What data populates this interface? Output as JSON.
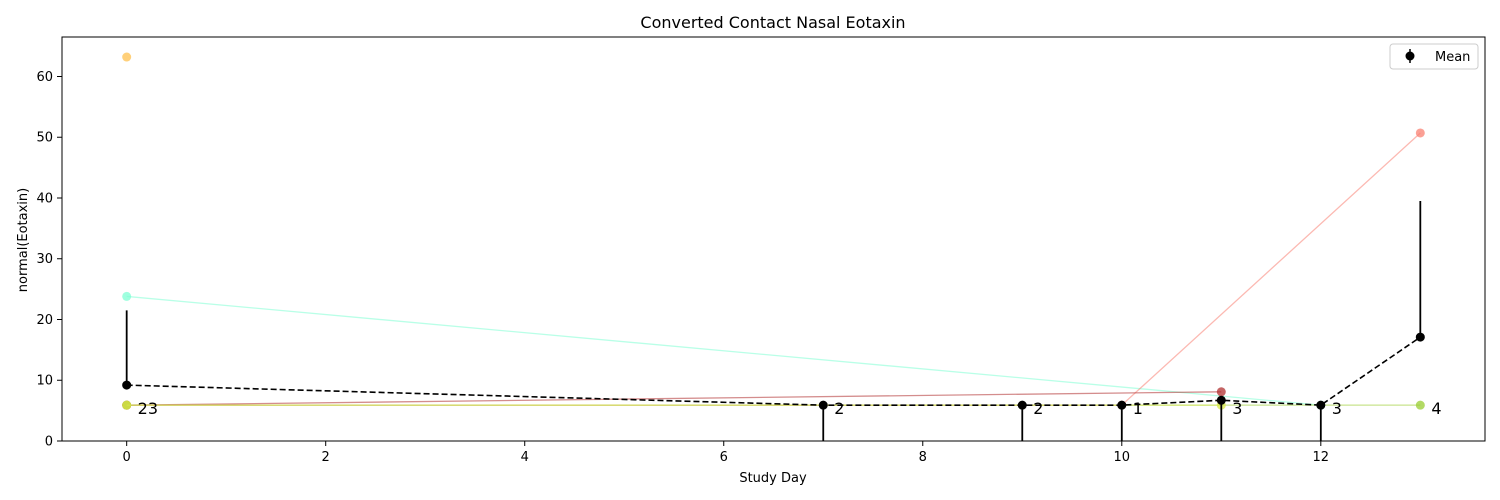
{
  "chart_data": {
    "type": "line",
    "title": "Converted Contact Nasal Eotaxin",
    "xlabel": "Study Day",
    "ylabel": "normal(Eotaxin)",
    "xlim": [
      -0.65,
      13.65
    ],
    "ylim": [
      0,
      66.5
    ],
    "xticks": [
      0,
      2,
      4,
      6,
      8,
      10,
      12
    ],
    "yticks": [
      0,
      10,
      20,
      30,
      40,
      50,
      60
    ],
    "grid": false,
    "legend": {
      "position": "top-right",
      "entries": [
        "Mean"
      ]
    },
    "individual_series": [
      {
        "color": "#ffc04d",
        "points": [
          [
            0,
            63.2
          ]
        ]
      },
      {
        "color": "#7fffd4",
        "points": [
          [
            0,
            23.8
          ],
          [
            12,
            5.9
          ]
        ]
      },
      {
        "color": "#fa8072",
        "points": [
          [
            0,
            5.9
          ],
          [
            10,
            5.9
          ],
          [
            13,
            50.7
          ]
        ]
      },
      {
        "color": "#b03030",
        "points": [
          [
            0,
            5.9
          ],
          [
            11,
            8.1
          ]
        ]
      },
      {
        "color": "#9acd32",
        "points": [
          [
            0,
            5.9
          ],
          [
            13,
            5.9
          ]
        ]
      },
      {
        "color": "#d8e84a",
        "points": [
          [
            0,
            5.9
          ],
          [
            11,
            5.9
          ]
        ]
      }
    ],
    "mean_series": {
      "name": "Mean",
      "color": "#000000",
      "x": [
        0,
        7,
        9,
        10,
        11,
        12,
        13
      ],
      "y": [
        9.2,
        5.9,
        5.9,
        5.9,
        6.7,
        5.9,
        17.1
      ],
      "yerr_low": [
        9.2,
        0,
        0,
        0,
        0,
        0,
        17.1
      ],
      "yerr_high": [
        21.5,
        5.9,
        5.9,
        5.9,
        6.7,
        5.9,
        39.5
      ],
      "counts": [
        "23",
        "2",
        "2",
        "1",
        "3",
        "3",
        "4"
      ]
    }
  }
}
